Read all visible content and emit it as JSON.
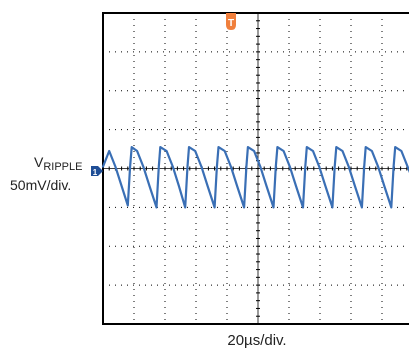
{
  "chart_data": {
    "type": "line",
    "title": "",
    "channel_label_main": "V",
    "channel_label_sub": "RIPPLE",
    "vertical_scale_label": "50mV/div.",
    "horizontal_scale_label": "20µs/div.",
    "trigger_marker": "T",
    "channel_marker": "1",
    "colors": {
      "trace": "#3a6fb5",
      "trigger": "#f07f3c",
      "channel": "#1f4e96",
      "grid": "#000000"
    },
    "grid": true,
    "divisions": {
      "x": 10,
      "y": 8
    },
    "time_per_div_us": 20,
    "volts_per_div_mv": 50,
    "xlim_us": [
      0,
      200
    ],
    "ylim_div": [
      -4,
      4
    ],
    "ripple_period_us": 18.5,
    "series": [
      {
        "values": [
          {
            "t_us": 0,
            "div": 0.05
          },
          {
            "t_us": 4,
            "div": 0.45
          },
          {
            "t_us": 8,
            "div": 0.05
          },
          {
            "t_us": 12,
            "div": -0.45
          },
          {
            "t_us": 16,
            "div": -0.95
          },
          {
            "t_us": 17.5,
            "div": 0.05
          },
          {
            "t_us": 18.5,
            "div": 0.55
          },
          {
            "t_us": 22,
            "div": 0.45
          },
          {
            "t_us": 26,
            "div": 0.05
          },
          {
            "t_us": 30,
            "div": -0.45
          },
          {
            "t_us": 34.5,
            "div": -1.0
          },
          {
            "t_us": 36,
            "div": 0.05
          },
          {
            "t_us": 37,
            "div": 0.55
          },
          {
            "t_us": 41,
            "div": 0.45
          },
          {
            "t_us": 45,
            "div": 0.05
          },
          {
            "t_us": 49,
            "div": -0.45
          },
          {
            "t_us": 53,
            "div": -1.0
          },
          {
            "t_us": 54.5,
            "div": 0.05
          },
          {
            "t_us": 55.5,
            "div": 0.55
          },
          {
            "t_us": 59.5,
            "div": 0.45
          },
          {
            "t_us": 63.5,
            "div": 0.05
          },
          {
            "t_us": 67.5,
            "div": -0.45
          },
          {
            "t_us": 72,
            "div": -1.0
          },
          {
            "t_us": 73.5,
            "div": 0.05
          },
          {
            "t_us": 74.5,
            "div": 0.55
          },
          {
            "t_us": 78.5,
            "div": 0.45
          },
          {
            "t_us": 82.5,
            "div": 0.05
          },
          {
            "t_us": 86.5,
            "div": -0.45
          },
          {
            "t_us": 91,
            "div": -1.0
          },
          {
            "t_us": 92.5,
            "div": 0.05
          },
          {
            "t_us": 93.5,
            "div": 0.55
          },
          {
            "t_us": 97.5,
            "div": 0.45
          },
          {
            "t_us": 101.5,
            "div": 0.05
          },
          {
            "t_us": 105.5,
            "div": -0.45
          },
          {
            "t_us": 110,
            "div": -1.0
          },
          {
            "t_us": 111.5,
            "div": 0.05
          },
          {
            "t_us": 112.5,
            "div": 0.55
          },
          {
            "t_us": 116.5,
            "div": 0.45
          },
          {
            "t_us": 120.5,
            "div": 0.05
          },
          {
            "t_us": 124.5,
            "div": -0.45
          },
          {
            "t_us": 129,
            "div": -1.0
          },
          {
            "t_us": 130.5,
            "div": 0.05
          },
          {
            "t_us": 131.5,
            "div": 0.55
          },
          {
            "t_us": 135.5,
            "div": 0.45
          },
          {
            "t_us": 139.5,
            "div": 0.05
          },
          {
            "t_us": 143.5,
            "div": -0.45
          },
          {
            "t_us": 148,
            "div": -1.0
          },
          {
            "t_us": 149.5,
            "div": 0.05
          },
          {
            "t_us": 150.5,
            "div": 0.55
          },
          {
            "t_us": 154.5,
            "div": 0.45
          },
          {
            "t_us": 158.5,
            "div": 0.05
          },
          {
            "t_us": 162.5,
            "div": -0.45
          },
          {
            "t_us": 167,
            "div": -1.0
          },
          {
            "t_us": 168.5,
            "div": 0.05
          },
          {
            "t_us": 169.5,
            "div": 0.55
          },
          {
            "t_us": 173.5,
            "div": 0.45
          },
          {
            "t_us": 177.5,
            "div": 0.05
          },
          {
            "t_us": 181.5,
            "div": -0.45
          },
          {
            "t_us": 186,
            "div": -1.0
          },
          {
            "t_us": 187.5,
            "div": 0.05
          },
          {
            "t_us": 188.5,
            "div": 0.55
          },
          {
            "t_us": 192.5,
            "div": 0.45
          },
          {
            "t_us": 196.5,
            "div": 0.05
          },
          {
            "t_us": 200,
            "div": -0.3
          }
        ]
      }
    ]
  }
}
